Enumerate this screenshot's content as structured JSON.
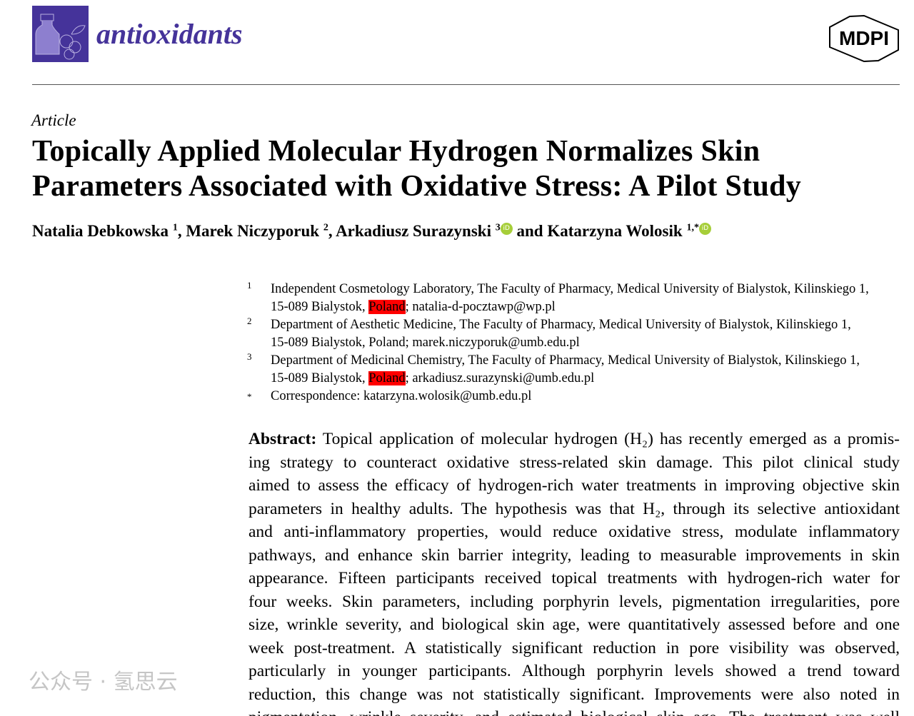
{
  "header": {
    "journal": "antioxidants",
    "publisher": "MDPI"
  },
  "article_type": "Article",
  "title_lines": [
    "Topically Applied Molecular Hydrogen Normalizes Skin",
    "Parameters Associated with Oxidative Stress: A Pilot Study"
  ],
  "authors": [
    {
      "name": "Natalia Debkowska",
      "sup": "1"
    },
    {
      "name": "Marek Niczyporuk",
      "sup": "2"
    },
    {
      "name": "Arkadiusz Surazynski",
      "sup": "3"
    },
    {
      "name": "Katarzyna Wolosik",
      "sup": "1,*"
    }
  ],
  "author_sep": ", ",
  "author_and": " and ",
  "affiliations": [
    {
      "n": "1",
      "a": "Independent Cosmetology Laboratory, The Faculty of Pharmacy, Medical University of Bialystok, Kilinskiego 1,",
      "b": "15-089 Bialystok, ",
      "c": "Poland",
      "d": "; natalia-d-pocztawp@wp.pl"
    },
    {
      "n": "2",
      "a": "Department of Aesthetic Medicine, The Faculty of Pharmacy, Medical University of Bialystok, Kilinskiego 1,",
      "b": "15-089 Bialystok, Poland; marek.niczyporuk@umb.edu.pl"
    },
    {
      "n": "3",
      "a": "Department of Medicinal Chemistry, The Faculty of Pharmacy, Medical University of Bialystok, Kilinskiego 1,",
      "b": "15-089 Bialystok, ",
      "c": "Poland",
      "d": "; arkadiusz.surazynski@umb.edu.pl"
    },
    {
      "n": "*",
      "a": "Correspondence: katarzyna.wolosik@umb.edu.pl"
    }
  ],
  "abstract": {
    "label": "Abstract:",
    "lines": [
      " Topical application of molecular hydrogen (H₂) has recently emerged as a promis-",
      "ing strategy to counteract oxidative stress-related skin damage. This pilot clinical study",
      "aimed to assess the efficacy of hydrogen-rich water treatments in improving objective skin",
      "parameters in healthy adults. The hypothesis was that H₂, through its selective antioxidant",
      "and anti-inflammatory properties, would reduce oxidative stress, modulate inflammatory",
      "pathways, and enhance skin barrier integrity, leading to measurable improvements in skin",
      "appearance. Fifteen participants received topical treatments with hydrogen-rich water for",
      "four weeks. Skin parameters, including porphyrin levels, pigmentation irregularities, pore",
      "size, wrinkle severity, and biological skin age, were quantitatively assessed before and one",
      "week post-treatment. A statistically significant reduction in pore visibility was observed,",
      "particularly in younger participants. Although porphyrin levels showed a trend toward",
      "reduction, this change was not statistically significant. Improvements were also noted in",
      "pigmentation, wrinkle severity, and estimated biological skin age. The treatment was well"
    ]
  },
  "watermark": "公众号 · 氢思云"
}
